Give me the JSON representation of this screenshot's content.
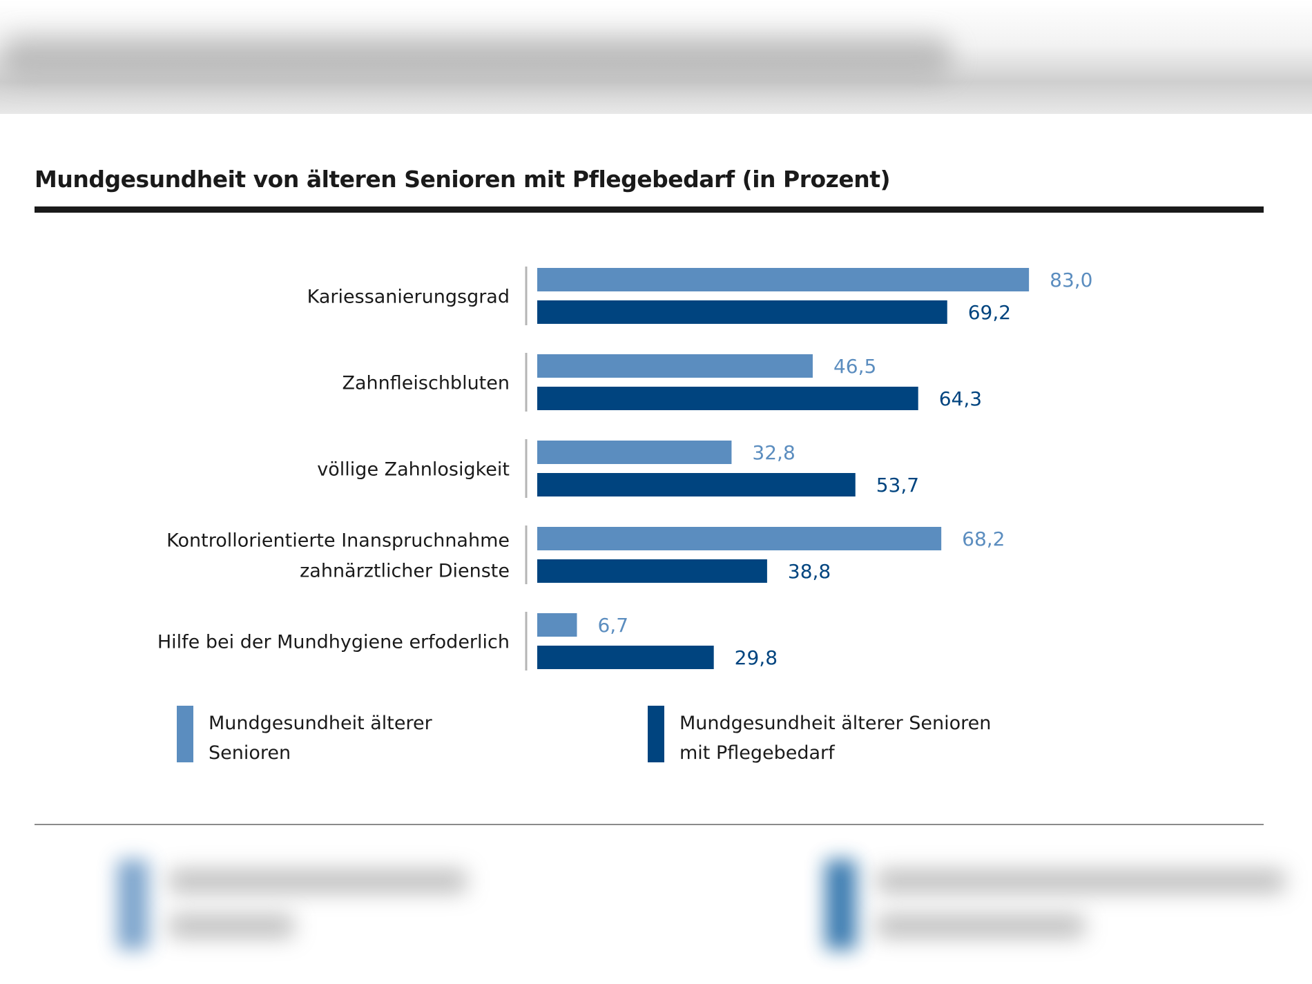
{
  "chart_data": {
    "type": "bar",
    "orientation": "horizontal",
    "title": "Mundgesundheit von älteren Senioren mit Pflegebedarf (in Prozent)",
    "categories": [
      [
        "Kariessanierungsgrad"
      ],
      [
        "Zahnfleischbluten"
      ],
      [
        "völlige Zahnlosigkeit"
      ],
      [
        "Kontrollorientierte Inanspruchnahme",
        "zahnärztlicher Dienste"
      ],
      [
        "Hilfe bei der Mundhygiene erfoderlich"
      ]
    ],
    "series": [
      {
        "name": "Mundgesundheit älterer Senioren",
        "color": "#5b8dbf",
        "values": [
          83.0,
          46.5,
          32.8,
          68.2,
          6.7
        ],
        "labels": [
          "83,0",
          "46,5",
          "32,8",
          "68,2",
          "6,7"
        ]
      },
      {
        "name": "Mundgesundheit älterer Senioren mit Pflegebedarf",
        "color": "#00447f",
        "values": [
          69.2,
          64.3,
          53.7,
          38.8,
          29.8
        ],
        "labels": [
          "69,2",
          "64,3",
          "53,7",
          "38,8",
          "29,8"
        ]
      }
    ],
    "xlim": [
      0,
      100
    ],
    "grid": false,
    "legend_position": "bottom"
  },
  "legend": {
    "light_lines": [
      "Mundgesundheit älterer",
      "Senioren"
    ],
    "dark_lines": [
      "Mundgesundheit älterer Senioren",
      "mit Pflegebedarf"
    ]
  }
}
